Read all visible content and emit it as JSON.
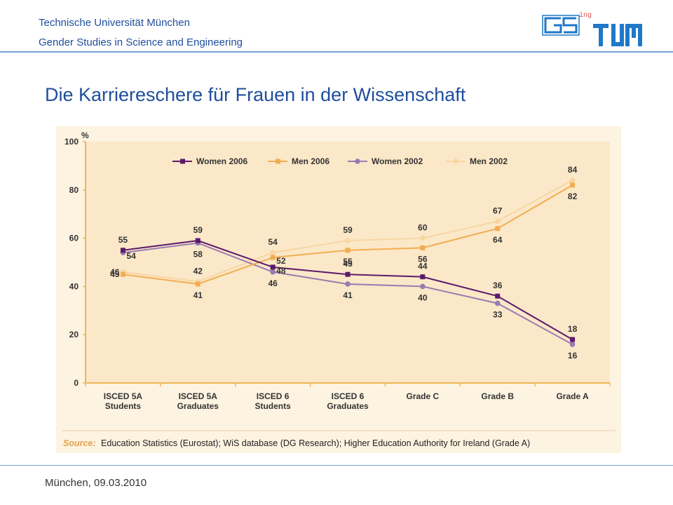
{
  "header": {
    "institution": "Technische Universität München",
    "department": "Gender Studies in Science and Engineering",
    "logo_text_superscript": "ing"
  },
  "slide": {
    "title": "Die Karriereschere für Frauen in der Wissenschaft"
  },
  "footer": {
    "date": "München, 09.03.2010"
  },
  "colors": {
    "brand_blue": "#1f4e9c",
    "chart_bg": "#fdf3e1",
    "plot_bg": "#fbe8c8",
    "women2006": "#5c1a6b",
    "men2006": "#f2ad52",
    "women2002": "#9a7bb0",
    "men2002": "#f8d6a4",
    "source_label": "#e8a14a"
  },
  "chart_data": {
    "type": "line",
    "unit_label": "%",
    "ylim": [
      0,
      100
    ],
    "yticks": [
      "0",
      "20",
      "40",
      "60",
      "80",
      "100"
    ],
    "grid": false,
    "legend_position": "top",
    "categories": [
      [
        "ISCED 5A",
        "Students"
      ],
      [
        "ISCED 5A",
        "Graduates"
      ],
      [
        "ISCED 6",
        "Students"
      ],
      [
        "ISCED 6",
        "Graduates"
      ],
      [
        "Grade C"
      ],
      [
        "Grade B"
      ],
      [
        "Grade A"
      ]
    ],
    "series": [
      {
        "name": "Women 2006",
        "values": [
          55,
          59,
          48,
          45,
          44,
          36,
          18
        ],
        "marker": "square",
        "color": "#5c1a6b",
        "label_pos": [
          "above",
          "above",
          "right",
          "above",
          "above",
          "above",
          "above"
        ]
      },
      {
        "name": "Men 2006",
        "values": [
          45,
          41,
          52,
          55,
          56,
          64,
          82
        ],
        "marker": "square",
        "color": "#f2ad52",
        "label_pos": [
          "left",
          "below",
          "right",
          "below",
          "below",
          "below",
          "below"
        ]
      },
      {
        "name": "Women 2002",
        "values": [
          54,
          58,
          46,
          41,
          40,
          33,
          16
        ],
        "marker": "circle",
        "color": "#9a7bb0",
        "label_pos": [
          "right",
          "below",
          "below",
          "below",
          "below",
          "below",
          "below"
        ]
      },
      {
        "name": "Men 2002",
        "values": [
          46,
          42,
          54,
          59,
          60,
          67,
          84
        ],
        "marker": "circle",
        "color": "#f8d6a4",
        "label_pos": [
          "left",
          "above",
          "above",
          "above",
          "above",
          "above",
          "above"
        ]
      }
    ],
    "source_label": "Source:",
    "source_text": "Education Statistics (Eurostat); WiS database (DG Research); Higher Education Authority for Ireland (Grade A)"
  }
}
